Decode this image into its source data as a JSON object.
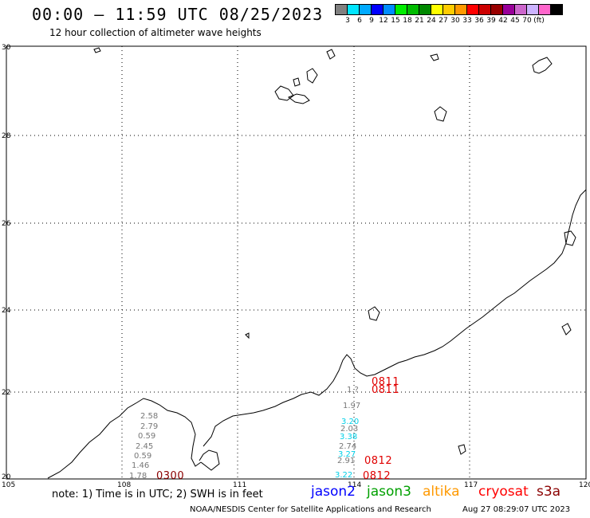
{
  "header": {
    "title": "00:00 – 11:59 UTC 08/25/2023",
    "subtitle": "12 hour collection of altimeter wave heights"
  },
  "colorbar": {
    "colors": [
      "#808080",
      "#00e5ff",
      "#00aaff",
      "#0000ff",
      "#008cff",
      "#00ee00",
      "#00bb00",
      "#008800",
      "#ffff00",
      "#ffcc00",
      "#ff9900",
      "#ff0000",
      "#cc0000",
      "#990000",
      "#990099",
      "#cc66cc",
      "#ccb3ff",
      "#ff66cc",
      "#000000"
    ],
    "ticks": [
      "3",
      "6",
      "9",
      "12",
      "15",
      "18",
      "21",
      "24",
      "27",
      "30",
      "33",
      "36",
      "39",
      "42",
      "45",
      "70",
      "(ft)"
    ]
  },
  "map": {
    "lon_ticks": [
      "105",
      "108",
      "111",
      "114",
      "117",
      "120"
    ],
    "lat_ticks": [
      "30",
      "28",
      "26",
      "24",
      "22",
      "20"
    ],
    "grid": true
  },
  "tracks": [
    {
      "time": "0300",
      "color": "dark-red"
    },
    {
      "time": "0811",
      "color": "red"
    },
    {
      "time": "0811",
      "color": "red"
    },
    {
      "time": "0812",
      "color": "red"
    },
    {
      "time": "0812",
      "color": "red"
    }
  ],
  "swh_values": {
    "track_108": [
      "2.58",
      "2.79",
      "0.59",
      "2.45",
      "0.59",
      "1.46",
      "1.78"
    ],
    "track_114_gray": [
      "1.97",
      "2.03",
      "2.74",
      "2.91"
    ],
    "track_114_cyan": [
      "3.20",
      "3.38",
      "3.27",
      "3.22"
    ],
    "track_114_top": [
      "1.?"
    ]
  },
  "footer": {
    "note": "note: 1) Time is in UTC; 2) SWH is in feet",
    "satellites": [
      {
        "name": "jason2",
        "color": "#0000ff"
      },
      {
        "name": "jason3",
        "color": "#00a000"
      },
      {
        "name": "altika",
        "color": "#ff9900"
      },
      {
        "name": "cryosat",
        "color": "#ff0000"
      },
      {
        "name": "s3a",
        "color": "#8b0000"
      }
    ],
    "credit": "NOAA/NESDIS Center for Satellite Applications and Research",
    "timestamp": "Aug 27 08:29:07 UTC 2023"
  }
}
